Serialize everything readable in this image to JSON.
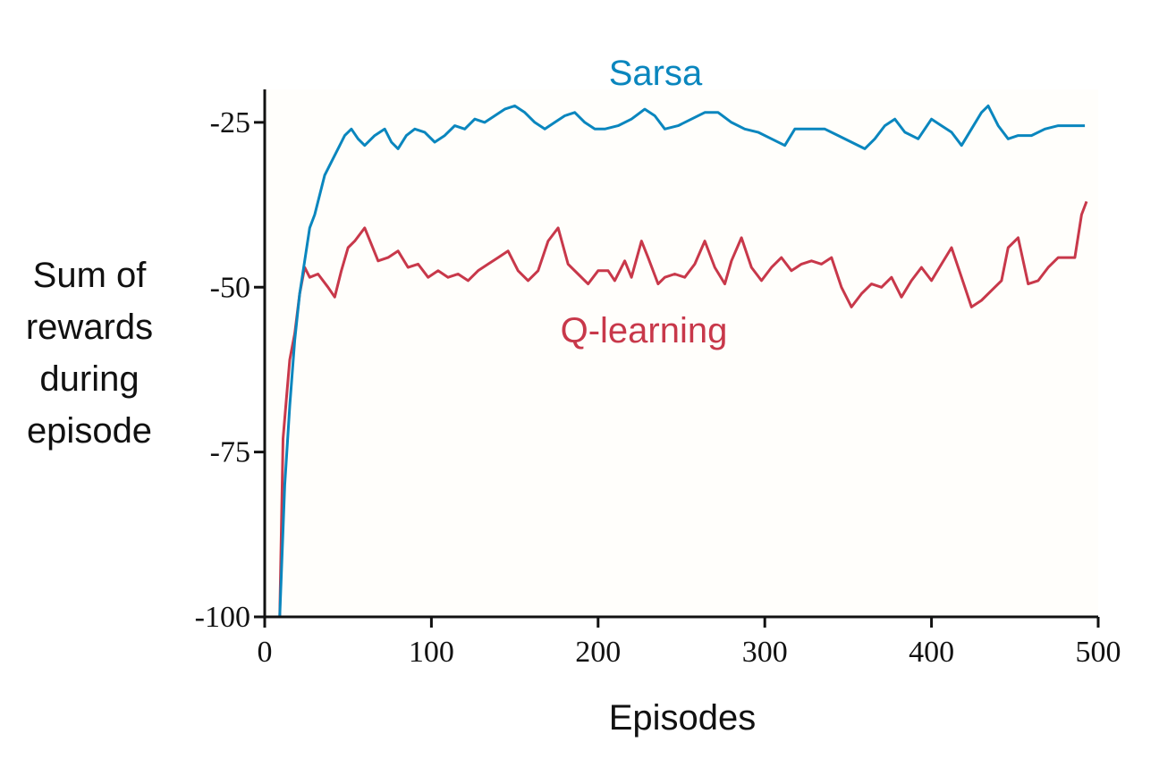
{
  "chart_data": {
    "type": "line",
    "xlabel": "Episodes",
    "ylabel_lines": [
      "Sum of",
      "rewards",
      "during",
      "episode"
    ],
    "xlim": [
      0,
      500
    ],
    "ylim": [
      -100,
      -20
    ],
    "xticks": [
      0,
      100,
      200,
      300,
      400,
      500
    ],
    "xtick_labels": [
      "0",
      "100",
      "200",
      "300",
      "400",
      "500"
    ],
    "yticks": [
      -25,
      -50,
      -75,
      -100
    ],
    "ytick_labels": [
      "-25",
      "-50",
      "-75",
      "-100"
    ],
    "grid": false,
    "legend": "inline labels",
    "series": [
      {
        "name": "Sarsa",
        "color": "#0a86be",
        "label_color": "#0a86be",
        "x": [
          9,
          12,
          15,
          18,
          21,
          24,
          27,
          30,
          33,
          36,
          40,
          44,
          48,
          52,
          56,
          60,
          66,
          72,
          76,
          80,
          85,
          90,
          96,
          102,
          108,
          114,
          120,
          126,
          132,
          138,
          144,
          150,
          156,
          162,
          168,
          174,
          180,
          186,
          192,
          198,
          204,
          212,
          220,
          228,
          234,
          240,
          248,
          256,
          264,
          272,
          280,
          288,
          296,
          304,
          312,
          318,
          324,
          330,
          336,
          344,
          352,
          360,
          366,
          372,
          378,
          384,
          392,
          400,
          406,
          412,
          418,
          424,
          430,
          434,
          440,
          446,
          452,
          460,
          468,
          476,
          484,
          492
        ],
        "values": [
          -100,
          -80,
          -68,
          -58,
          -51,
          -46,
          -41,
          -39,
          -36,
          -33,
          -31,
          -29,
          -27,
          -26,
          -27.5,
          -28.5,
          -27,
          -26,
          -28,
          -29,
          -27,
          -26,
          -26.5,
          -28,
          -27,
          -25.5,
          -26,
          -24.5,
          -25,
          -24,
          -23,
          -22.5,
          -23.5,
          -25,
          -26,
          -25,
          -24,
          -23.5,
          -25,
          -26,
          -26,
          -25.5,
          -24.5,
          -23,
          -24,
          -26,
          -25.5,
          -24.5,
          -23.5,
          -23.5,
          -25,
          -26,
          -26.5,
          -27.5,
          -28.5,
          -26,
          -26,
          -26,
          -26,
          -27,
          -28,
          -29,
          -27.5,
          -25.5,
          -24.5,
          -26.5,
          -27.5,
          -24.5,
          -25.5,
          -26.5,
          -28.5,
          -26,
          -23.5,
          -22.5,
          -25.5,
          -27.5,
          -27,
          -27,
          -26,
          -25.5,
          -25.5,
          -25.5
        ]
      },
      {
        "name": "Q-learning",
        "color": "#c8384a",
        "label_color": "#c8384a",
        "x": [
          9,
          11,
          13,
          15,
          18,
          21,
          24,
          27,
          32,
          38,
          42,
          46,
          50,
          54,
          60,
          64,
          68,
          74,
          80,
          86,
          92,
          98,
          104,
          110,
          116,
          122,
          128,
          134,
          140,
          146,
          152,
          158,
          164,
          170,
          176,
          182,
          188,
          194,
          200,
          206,
          210,
          216,
          220,
          226,
          230,
          236,
          240,
          246,
          252,
          258,
          264,
          270,
          276,
          280,
          286,
          292,
          298,
          304,
          310,
          316,
          322,
          328,
          334,
          340,
          346,
          352,
          358,
          364,
          370,
          376,
          382,
          388,
          394,
          400,
          406,
          412,
          418,
          424,
          430,
          436,
          442,
          446,
          452,
          458,
          464,
          470,
          476,
          480,
          486,
          490,
          493
        ],
        "values": [
          -100,
          -73,
          -67,
          -61,
          -57,
          -51,
          -47,
          -48.5,
          -48,
          -50,
          -51.5,
          -47.5,
          -44,
          -43,
          -41,
          -43.5,
          -46,
          -45.5,
          -44.5,
          -47,
          -46.5,
          -48.5,
          -47.5,
          -48.5,
          -48,
          -49,
          -47.5,
          -46.5,
          -45.5,
          -44.5,
          -47.5,
          -49,
          -47.5,
          -43,
          -41,
          -46.5,
          -48,
          -49.5,
          -47.5,
          -47.5,
          -49,
          -46,
          -48.5,
          -43,
          -45.5,
          -49.5,
          -48.5,
          -48,
          -48.5,
          -46.5,
          -43,
          -47,
          -49.5,
          -46,
          -42.5,
          -47,
          -49,
          -47,
          -45.5,
          -47.5,
          -46.5,
          -46,
          -46.5,
          -45.5,
          -50,
          -53,
          -51,
          -49.5,
          -50,
          -48.5,
          -51.5,
          -49,
          -47,
          -49,
          -46.5,
          -44,
          -48.5,
          -53,
          -52,
          -50.5,
          -49,
          -44,
          -42.5,
          -49.5,
          -49,
          -47,
          -45.5,
          -45.5,
          -45.5,
          -39,
          -37
        ]
      }
    ]
  }
}
